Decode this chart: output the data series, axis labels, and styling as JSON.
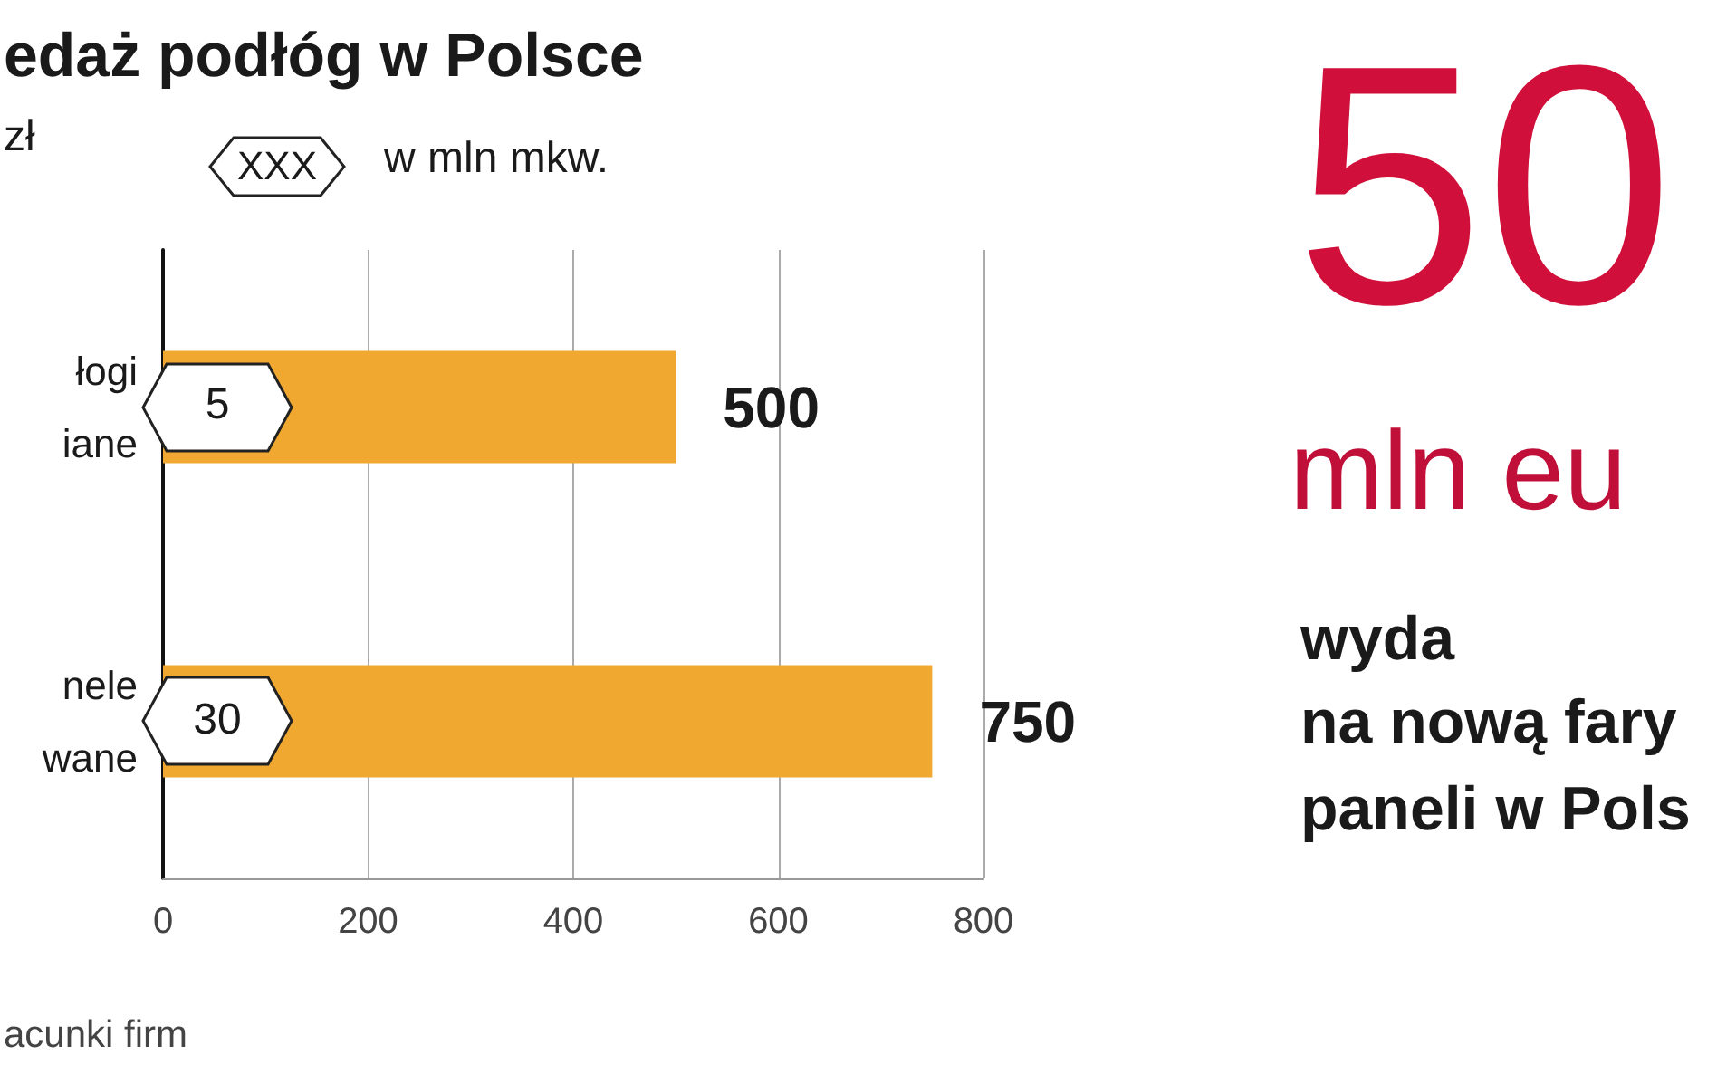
{
  "chart_data": {
    "type": "bar",
    "orientation": "horizontal",
    "title": "edaż podłóg w Polsce",
    "categories": [
      "łogi\niane",
      "nele\nwane"
    ],
    "values": [
      500,
      750
    ],
    "color": "#f0a830",
    "data_labels": true,
    "xlim": [
      0,
      800
    ],
    "xticks": [
      0,
      200,
      400,
      600,
      800
    ],
    "grid": "x",
    "annotations": [
      "zł",
      "XXX",
      "w mln mkw.",
      "acunki firm",
      "50",
      "mln eu",
      "wyda",
      "na nową fary",
      "paneli w Pols",
      {
        "text": "5",
        "x": 0,
        "y": "łogi\niane"
      },
      {
        "text": "30",
        "x": 0,
        "y": "nele\nwane"
      }
    ]
  }
}
